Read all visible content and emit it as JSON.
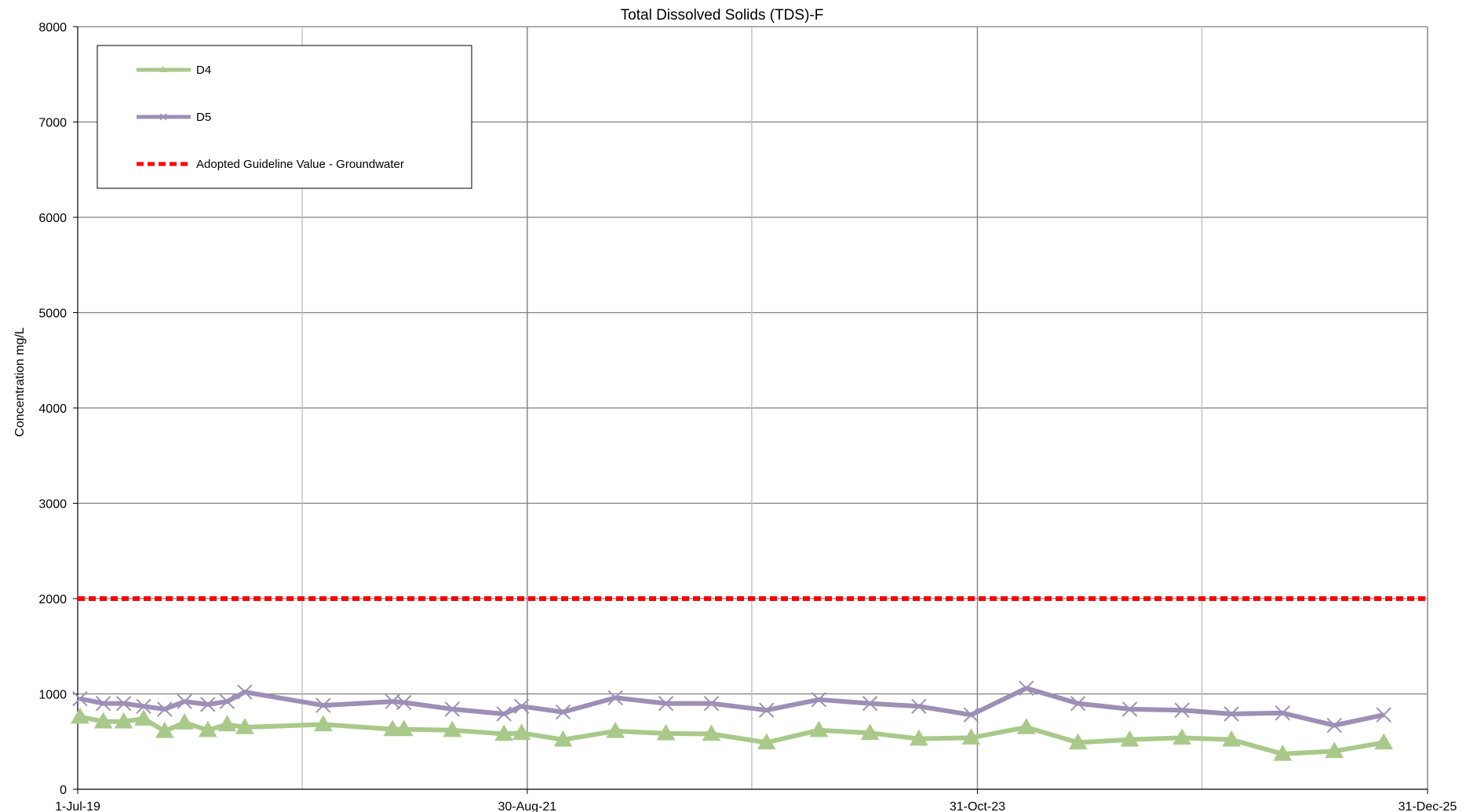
{
  "chart_data": {
    "type": "line",
    "title": "Total Dissolved Solids (TDS)-F",
    "ylabel": "Concentration mg/L",
    "xlabel": "",
    "ylim": [
      0,
      8000
    ],
    "yticks": [
      "0",
      "1000",
      "2000",
      "3000",
      "4000",
      "5000",
      "6000",
      "7000",
      "8000"
    ],
    "xlim": [
      "2019-07-01",
      "2025-12-31"
    ],
    "xticks": [
      {
        "date": "2019-07-01",
        "label": "1-Jul-19"
      },
      {
        "date": "2021-08-30",
        "label": "30-Aug-21"
      },
      {
        "date": "2023-10-31",
        "label": "31-Oct-23"
      },
      {
        "date": "2025-12-31",
        "label": "31-Dec-25"
      }
    ],
    "vgrid_minor": [
      "2020-07-30",
      "2022-09-29",
      "2024-11-29"
    ],
    "grid": true,
    "legend_position": "top-left",
    "series": [
      {
        "name": "D4",
        "color": "#a9c98a",
        "marker": "triangle",
        "points": [
          [
            "2019-07-05",
            760
          ],
          [
            "2019-08-15",
            710
          ],
          [
            "2019-09-20",
            710
          ],
          [
            "2019-10-25",
            740
          ],
          [
            "2019-12-01",
            610
          ],
          [
            "2020-01-05",
            700
          ],
          [
            "2020-02-15",
            620
          ],
          [
            "2020-03-20",
            680
          ],
          [
            "2020-04-20",
            650
          ],
          [
            "2020-09-05",
            680
          ],
          [
            "2021-01-05",
            630
          ],
          [
            "2021-01-25",
            630
          ],
          [
            "2021-04-20",
            620
          ],
          [
            "2021-07-20",
            580
          ],
          [
            "2021-08-20",
            590
          ],
          [
            "2021-11-01",
            520
          ],
          [
            "2022-02-01",
            610
          ],
          [
            "2022-05-01",
            585
          ],
          [
            "2022-07-20",
            580
          ],
          [
            "2022-10-25",
            490
          ],
          [
            "2023-01-25",
            620
          ],
          [
            "2023-04-25",
            590
          ],
          [
            "2023-07-20",
            530
          ],
          [
            "2023-10-20",
            540
          ],
          [
            "2024-01-25",
            650
          ],
          [
            "2024-04-25",
            490
          ],
          [
            "2024-07-25",
            520
          ],
          [
            "2024-10-25",
            540
          ],
          [
            "2025-01-20",
            520
          ],
          [
            "2025-04-20",
            370
          ],
          [
            "2025-07-20",
            400
          ],
          [
            "2025-10-15",
            490
          ]
        ]
      },
      {
        "name": "D5",
        "color": "#9d8fb5",
        "marker": "x",
        "points": [
          [
            "2019-07-05",
            950
          ],
          [
            "2019-08-15",
            900
          ],
          [
            "2019-09-20",
            900
          ],
          [
            "2019-10-25",
            870
          ],
          [
            "2019-12-01",
            840
          ],
          [
            "2020-01-05",
            920
          ],
          [
            "2020-02-15",
            890
          ],
          [
            "2020-03-20",
            920
          ],
          [
            "2020-04-20",
            1020
          ],
          [
            "2020-09-05",
            880
          ],
          [
            "2021-01-05",
            920
          ],
          [
            "2021-01-25",
            910
          ],
          [
            "2021-04-20",
            840
          ],
          [
            "2021-07-20",
            790
          ],
          [
            "2021-08-20",
            870
          ],
          [
            "2021-11-01",
            810
          ],
          [
            "2022-02-01",
            960
          ],
          [
            "2022-05-01",
            900
          ],
          [
            "2022-07-20",
            900
          ],
          [
            "2022-10-25",
            830
          ],
          [
            "2023-01-25",
            940
          ],
          [
            "2023-04-25",
            900
          ],
          [
            "2023-07-20",
            870
          ],
          [
            "2023-10-20",
            780
          ],
          [
            "2024-01-25",
            1060
          ],
          [
            "2024-04-25",
            900
          ],
          [
            "2024-07-25",
            840
          ],
          [
            "2024-10-25",
            830
          ],
          [
            "2025-01-20",
            790
          ],
          [
            "2025-04-20",
            800
          ],
          [
            "2025-07-20",
            670
          ],
          [
            "2025-10-15",
            780
          ]
        ]
      },
      {
        "name": "Adopted Guideline Value - Groundwater",
        "color": "#ff0000",
        "line_style": "dashed",
        "points": [
          [
            "2019-07-01",
            2000
          ],
          [
            "2025-12-31",
            2000
          ]
        ]
      }
    ]
  }
}
